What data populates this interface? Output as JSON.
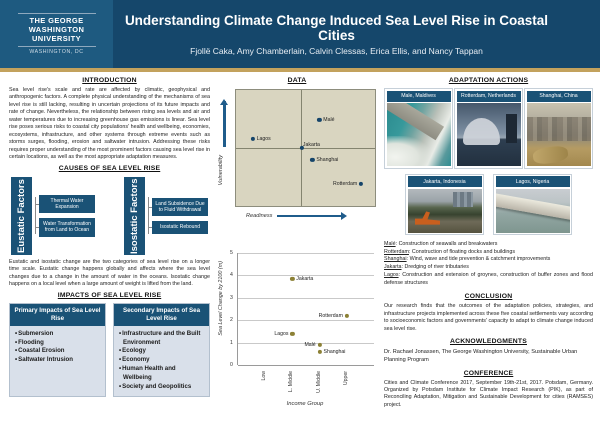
{
  "header": {
    "logo": {
      "line1": "THE GEORGE",
      "line2": "WASHINGTON",
      "line3": "UNIVERSITY",
      "sub": "WASHINGTON, DC"
    },
    "title": "Understanding Climate Change Induced Sea Level Rise in Coastal Cities",
    "authors": "Fjollë Caka,  Amy Chamberlain, Calvin Clessas, Erica Ellis, and Nancy Tappan"
  },
  "intro": {
    "heading": "INTRODUCTION",
    "text": "Sea level rise's scale and rate are affected by climatic, geophysical and anthropogenic factors. A complete physical understanding of the mechanisms of sea level rise is still lacking, resulting in uncertain projections of its future impacts and rate of change. Nevertheless, the relationship between rising sea levels and air and water temperatures due to increasing greenhouse gas emissions is linear. Sea level rise poses serious risks to coastal city populations' health and wellbeing, economies, ecosystems, infrastructure, and other systems through extreme events such as storms surges, flooding, erosion and saltwater intrusion. Addressing these risks requires proper understanding of the most prominent factors causing sea level rise in certain locations, as well as the most appropriate adaptation measures."
  },
  "causes": {
    "heading": "CAUSES OF SEA LEVEL RISE",
    "groups": [
      {
        "label": "Eustatic Factors",
        "items": [
          "Thermal Water Expansion",
          "Water Transformation from Land to Ocean"
        ]
      },
      {
        "label": "Isostatic Factors",
        "items": [
          "Land Subsidence Due to Fluid Withdrawal",
          "Isostatic Rebound"
        ]
      }
    ],
    "caption": "Eustatic and isostatic change are the two categories of sea level rise on a longer time scale. Eustatic change happens globally and affects where the sea level changes due to a change in the amount of water in the oceans. Isostatic change happens on a local level when a large amount of weight is lifted from the land."
  },
  "impacts": {
    "heading": "IMPACTS OF SEA LEVEL RISE",
    "boxes": [
      {
        "title": "Primary Impacts of Sea Level Rise",
        "items": [
          "Submersion",
          "Flooding",
          "Coastal Erosion",
          "Saltwater Intrusion"
        ]
      },
      {
        "title": "Secondary Impacts of Sea Level Rise",
        "items": [
          "Infrastructure and the Built Environment",
          "Ecology",
          "Economy",
          "Human Health and Wellbeing",
          "Society and Geopolitics"
        ]
      }
    ]
  },
  "data_section": {
    "heading": "DATA"
  },
  "chart_data": [
    {
      "type": "scatter",
      "title": "Vulnerability vs Readiness quadrant",
      "xlabel": "Readiness",
      "ylabel": "Vulnerability",
      "xlim": [
        0,
        1
      ],
      "ylim": [
        0,
        1
      ],
      "divider_x": 0.47,
      "divider_y": 0.5,
      "grid": "quadrant",
      "point_color": "#16456A",
      "background": "#D9D5C0",
      "points": [
        {
          "name": "Malé",
          "x": 0.6,
          "y": 0.74,
          "label_side": "right"
        },
        {
          "name": "Lagos",
          "x": 0.12,
          "y": 0.58,
          "label_side": "right"
        },
        {
          "name": "Jakarta",
          "x": 0.475,
          "y": 0.5,
          "label_side": "top-right"
        },
        {
          "name": "Shanghai",
          "x": 0.55,
          "y": 0.4,
          "label_side": "right"
        },
        {
          "name": "Rotterdam",
          "x": 0.9,
          "y": 0.19,
          "label_side": "left"
        }
      ]
    },
    {
      "type": "scatter",
      "title": "Sea level change by 2100 vs income group",
      "xlabel": "Income Group",
      "ylabel": "Sea Level Change by 2100 (m)",
      "categories": [
        "Low",
        "L. Middle",
        "U. Middle",
        "Upper"
      ],
      "ylim": [
        0,
        5
      ],
      "yticks": [
        0,
        1,
        2,
        3,
        4,
        5
      ],
      "grid": "horizontal",
      "point_color": "#8C8136",
      "points": [
        {
          "name": "Jakarta",
          "category": "L. Middle",
          "value": 3.85,
          "label_side": "right"
        },
        {
          "name": "Rotterdam",
          "category": "Upper",
          "value": 2.2,
          "label_side": "left"
        },
        {
          "name": "Lagos",
          "category": "L. Middle",
          "value": 1.4,
          "label_side": "left"
        },
        {
          "name": "Malé",
          "category": "U. Middle",
          "value": 0.9,
          "label_side": "left"
        },
        {
          "name": "Shanghai",
          "category": "U. Middle",
          "value": 0.6,
          "label_side": "right"
        }
      ]
    }
  ],
  "adaptation": {
    "heading": "ADAPTATION ACTIONS",
    "photos": [
      {
        "label": "Male, Maldives",
        "image": "seawall-and-ocean-waves"
      },
      {
        "label": "Rotterdam, Netherlands",
        "image": "floating-dome-pavilion-at-dusk"
      },
      {
        "label": "Shanghai, China",
        "image": "aerial-city-and-river"
      },
      {
        "label": "Jakarta, Indonesia",
        "image": "excavator-dredging-river"
      },
      {
        "label": "Lagos, Nigeria",
        "image": "stone-groyne-in-sea"
      }
    ],
    "notes": [
      {
        "city": "Malé",
        "text": ": Construction of seawalls and breakwaters"
      },
      {
        "city": "Rotterdam",
        "text": ": Construction of floating docks and buildings"
      },
      {
        "city": "Shanghai",
        "text": ": Wind, wave and tide prevention & catchment improvements"
      },
      {
        "city": "Jakarta",
        "text": ": Dredging of river tributaries"
      },
      {
        "city": "Lagos",
        "text": ": Construction and extension of groynes, construction of buffer zones and flood defense structures"
      }
    ]
  },
  "conclusion": {
    "heading": "CONCLUSION",
    "text": "Our research finds that the outcomes of the adaptation policies, strategies, and infrastructure projects implemented across these five coastal settlements vary according to socioeconomic factors and governments' capacity to adapt to climate change induced sea level rise."
  },
  "acknowledgments": {
    "heading": "ACKNOWLEDGMENTS",
    "text": "Dr. Rachael Jonassen, The George Washington University, Sustainable Urban Planning Program"
  },
  "conference": {
    "heading": "CONFERENCE",
    "text": "Cities and Climate Conference 2017, September 19th-21st, 2017. Potsdam, Germany. Organized by Potsdam Institute for Climate Impact Research (PIK), as part of Reconciling Adaptation, Mitigation and Sustainable Development for cities (RAMSES) project."
  },
  "colors": {
    "header_navy": "#15476B",
    "logo_navy": "#1E5A80",
    "gold_accent": "#C3A25D",
    "box_navy": "#1A5276",
    "quadrant_background": "#D9D5C0",
    "point_blue": "#16456A",
    "point_olive": "#8C8136",
    "impact_box_background": "#D9E0EA"
  }
}
